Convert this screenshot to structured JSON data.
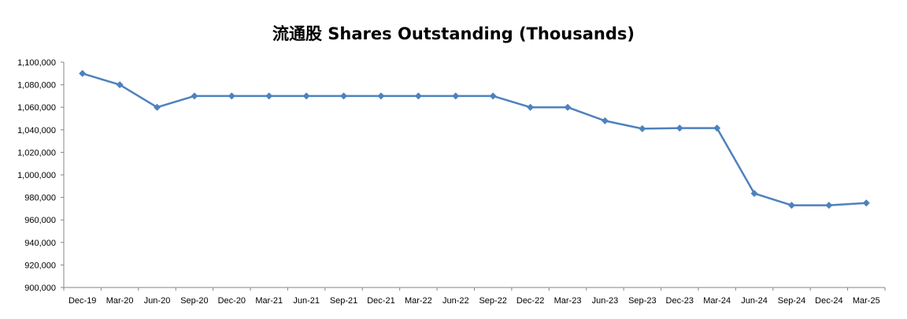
{
  "chart_data": {
    "type": "line",
    "title": "流通股 Shares Outstanding (Thousands)",
    "xlabel": "",
    "ylabel": "",
    "ylim": [
      900000,
      1100000
    ],
    "y_step": 20000,
    "yticks": [
      "900,000",
      "920,000",
      "940,000",
      "960,000",
      "980,000",
      "1,000,000",
      "1,020,000",
      "1,040,000",
      "1,060,000",
      "1,080,000",
      "1,100,000"
    ],
    "grid": false,
    "legend": "none",
    "categories": [
      "Dec-19",
      "Mar-20",
      "Jun-20",
      "Sep-20",
      "Dec-20",
      "Mar-21",
      "Jun-21",
      "Sep-21",
      "Dec-21",
      "Mar-22",
      "Jun-22",
      "Sep-22",
      "Dec-22",
      "Mar-23",
      "Jun-23",
      "Sep-23",
      "Dec-23",
      "Mar-24",
      "Jun-24",
      "Sep-24",
      "Dec-24",
      "Mar-25"
    ],
    "series": [
      {
        "name": "Shares Outstanding",
        "color": "#4F81BD",
        "values": [
          1090000,
          1080000,
          1060000,
          1070000,
          1070000,
          1070000,
          1070000,
          1070000,
          1070000,
          1070000,
          1070000,
          1070000,
          1060000,
          1060000,
          1048000,
          1041000,
          1041500,
          1041500,
          983500,
          973000,
          973000,
          975000
        ]
      }
    ]
  }
}
